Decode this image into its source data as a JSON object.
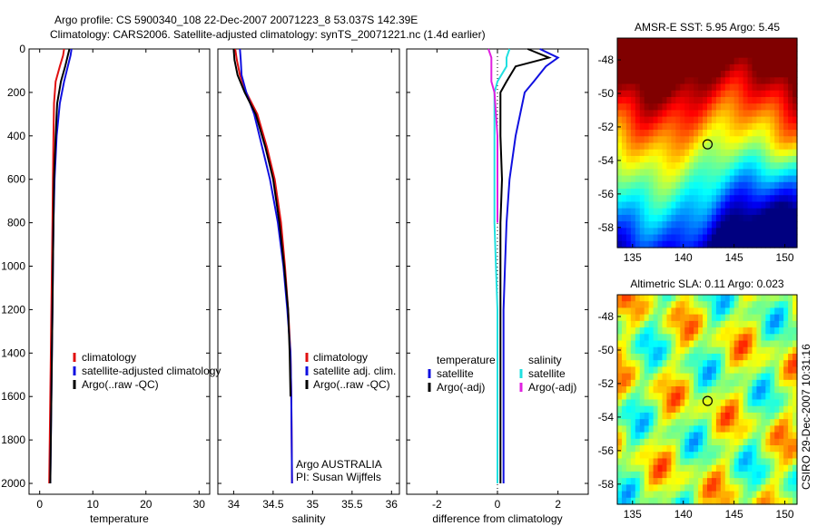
{
  "header": {
    "line1": "Argo profile: CS 5900340_108 22-Dec-2007 20071223_8 53.037S 142.39E",
    "line2": "Climatology: CARS2006. Satellite-adjusted climatology: synTS_20071221.nc (1.4d earlier)"
  },
  "side_stamp": "CSIRO 29-Dec-2007 10:31:16",
  "colors": {
    "clim": "#e01010",
    "sat": "#1010e0",
    "argo": "#000000",
    "sat_sal": "#20e0e0",
    "argo_sal": "#e020e0"
  },
  "chart_data": [
    {
      "type": "line",
      "id": "temperature",
      "xlabel": "temperature",
      "ylabel": "",
      "xlim": [
        -2,
        32
      ],
      "ylim": [
        2050,
        0
      ],
      "xticks": [
        0,
        10,
        20,
        30
      ],
      "yticks": [
        0,
        200,
        400,
        600,
        800,
        1000,
        1200,
        1400,
        1600,
        1800,
        2000
      ],
      "legend": [
        "climatology",
        "satellite-adjusted climatology",
        "Argo(..raw -QC)"
      ],
      "legend_position": "bottom-right",
      "series": [
        {
          "name": "climatology",
          "color": "clim",
          "x": [
            4.6,
            4.4,
            3.8,
            3.0,
            2.7,
            2.6,
            2.5,
            2.4,
            2.3,
            2.2,
            2.1,
            2.0,
            1.9,
            1.8
          ],
          "y": [
            0,
            30,
            80,
            150,
            250,
            400,
            600,
            800,
            1000,
            1200,
            1400,
            1600,
            1800,
            2000
          ]
        },
        {
          "name": "satellite-adjusted climatology",
          "color": "sat",
          "x": [
            6.0,
            5.8,
            5.3,
            4.6,
            3.8,
            3.2,
            2.8,
            2.6,
            2.5,
            2.4,
            2.3,
            2.2,
            2.1,
            2.0
          ],
          "y": [
            0,
            30,
            80,
            150,
            250,
            400,
            600,
            800,
            1000,
            1200,
            1400,
            1600,
            1800,
            2000
          ]
        },
        {
          "name": "Argo(..raw -QC)",
          "color": "argo",
          "x": [
            5.6,
            5.3,
            4.8,
            4.0,
            3.3,
            3.0,
            2.7,
            2.6,
            2.5,
            2.4,
            2.3,
            2.2,
            2.1,
            2.0
          ],
          "y": [
            0,
            30,
            80,
            150,
            250,
            400,
            600,
            800,
            1000,
            1200,
            1400,
            1600,
            1800,
            2000
          ]
        }
      ]
    },
    {
      "type": "line",
      "id": "salinity",
      "xlabel": "salinity",
      "xlim": [
        33.8,
        36.1
      ],
      "ylim": [
        2050,
        0
      ],
      "xticks": [
        34,
        34.5,
        35,
        35.5,
        36
      ],
      "legend": [
        "climatology",
        "satellite adj. clim.",
        "Argo(..raw -QC)"
      ],
      "legend_position": "bottom-right",
      "annotation": [
        "Argo AUSTRALIA",
        "PI: Susan Wijffels"
      ],
      "series": [
        {
          "name": "climatology",
          "color": "clim",
          "x": [
            34.02,
            34.04,
            34.08,
            34.16,
            34.3,
            34.42,
            34.52,
            34.6,
            34.65,
            34.69,
            34.72,
            34.73,
            34.735,
            34.74
          ],
          "y": [
            0,
            50,
            120,
            200,
            300,
            450,
            600,
            800,
            1000,
            1200,
            1400,
            1600,
            1800,
            2000
          ]
        },
        {
          "name": "satellite adj. clim.",
          "color": "sat",
          "x": [
            34.08,
            34.09,
            34.1,
            34.16,
            34.26,
            34.36,
            34.46,
            34.56,
            34.63,
            34.68,
            34.72,
            34.73,
            34.735,
            34.74
          ],
          "y": [
            0,
            50,
            120,
            200,
            300,
            450,
            600,
            800,
            1000,
            1200,
            1400,
            1600,
            1800,
            2000
          ]
        },
        {
          "name": "Argo(..raw -QC)",
          "color": "argo",
          "x": [
            34.0,
            34.01,
            34.05,
            34.14,
            34.28,
            34.4,
            34.5,
            34.58,
            34.64,
            34.69,
            34.71,
            34.72
          ],
          "y": [
            0,
            50,
            120,
            200,
            300,
            450,
            600,
            800,
            1000,
            1200,
            1400,
            1600
          ]
        }
      ]
    },
    {
      "type": "line",
      "id": "difference",
      "xlabel": "difference from climatology",
      "xlim": [
        -3,
        3
      ],
      "ylim": [
        2050,
        0
      ],
      "xticks": [
        -2,
        0,
        2
      ],
      "legend_temperature": {
        "title": "temperature",
        "items": [
          "satellite",
          "Argo(-adj)"
        ]
      },
      "legend_salinity": {
        "title": "salinity",
        "items": [
          "satellite",
          "Argo(-adj)"
        ]
      },
      "series": [
        {
          "name": "temperature satellite",
          "color": "sat",
          "x": [
            1.4,
            2.0,
            1.6,
            1.2,
            0.9,
            0.6,
            0.4,
            0.3,
            0.25,
            0.2,
            0.2,
            0.2,
            0.2
          ],
          "y": [
            0,
            40,
            80,
            150,
            200,
            400,
            600,
            800,
            1000,
            1200,
            1400,
            1600,
            2000
          ]
        },
        {
          "name": "temperature Argo(-adj)",
          "color": "argo",
          "x": [
            1.0,
            1.7,
            0.6,
            0.3,
            0.1,
            0.1,
            0.15,
            0.1,
            0.1,
            0.1,
            0.1,
            0.1,
            0.1
          ],
          "y": [
            0,
            40,
            80,
            150,
            200,
            400,
            600,
            800,
            1000,
            1200,
            1400,
            1600,
            2000
          ]
        },
        {
          "name": "salinity satellite",
          "color": "sat_sal",
          "x": [
            0.4,
            0.3,
            0.3,
            0.0,
            -0.1,
            -0.1,
            -0.1,
            -0.1,
            -0.05,
            0.0,
            0.0,
            0.0,
            0.0
          ],
          "y": [
            0,
            40,
            80,
            150,
            200,
            400,
            600,
            800,
            1000,
            1200,
            1400,
            1600,
            2000
          ]
        },
        {
          "name": "salinity Argo(-adj)",
          "color": "argo_sal",
          "x": [
            -0.3,
            -0.2,
            -0.2,
            -0.2,
            -0.1,
            0.0,
            0.0,
            0.0
          ],
          "y": [
            0,
            40,
            80,
            150,
            200,
            400,
            600,
            800
          ]
        }
      ]
    },
    {
      "type": "heatmap",
      "id": "sst_map",
      "title": "AMSR-E SST: 5.95 Argo: 5.45",
      "xlim": [
        133.5,
        151.2
      ],
      "ylim": [
        -59.2,
        -46.7
      ],
      "xticks": [
        135,
        140,
        145,
        150
      ],
      "yticks": [
        -48,
        -50,
        -52,
        -54,
        -56,
        -58
      ],
      "marker": {
        "lon": 142.39,
        "lat": -53.037
      }
    },
    {
      "type": "heatmap",
      "id": "sla_map",
      "title": "Altimetric SLA: 0.11 Argo: 0.023",
      "xlim": [
        133.5,
        151.2
      ],
      "ylim": [
        -59.2,
        -46.7
      ],
      "xticks": [
        135,
        140,
        145,
        150
      ],
      "yticks": [
        -48,
        -50,
        -52,
        -54,
        -56,
        -58
      ],
      "marker": {
        "lon": 142.39,
        "lat": -53.037
      }
    }
  ]
}
